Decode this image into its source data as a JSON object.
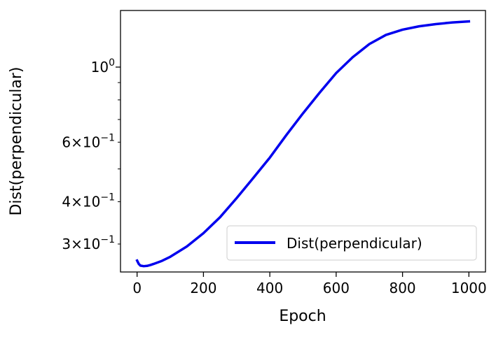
{
  "chart_data": {
    "type": "line",
    "xlabel": "Epoch",
    "ylabel": "Dist(perpendicular)",
    "xlim": [
      -50,
      1050
    ],
    "ylim": [
      0.248,
      1.47
    ],
    "yscale": "log",
    "grid": false,
    "legend_position": "bottom-right",
    "x_ticks": [
      {
        "value": 0,
        "label": "0"
      },
      {
        "value": 200,
        "label": "200"
      },
      {
        "value": 400,
        "label": "400"
      },
      {
        "value": 600,
        "label": "600"
      },
      {
        "value": 800,
        "label": "800"
      },
      {
        "value": 1000,
        "label": "1000"
      }
    ],
    "y_major_ticks": [
      {
        "value": 1.0,
        "mantissa": "",
        "base": "10",
        "exp": "0"
      }
    ],
    "y_minor_ticks": [
      {
        "value": 0.3,
        "mantissa": "3",
        "base": "10",
        "exp": "−1"
      },
      {
        "value": 0.4,
        "mantissa": "4",
        "base": "10",
        "exp": "−1"
      },
      {
        "value": 0.5,
        "mantissa": "",
        "base": "",
        "exp": ""
      },
      {
        "value": 0.6,
        "mantissa": "6",
        "base": "10",
        "exp": "−1"
      },
      {
        "value": 0.7,
        "mantissa": "",
        "base": "",
        "exp": ""
      },
      {
        "value": 0.8,
        "mantissa": "",
        "base": "",
        "exp": ""
      },
      {
        "value": 0.9,
        "mantissa": "",
        "base": "",
        "exp": ""
      }
    ],
    "series": [
      {
        "name": "Dist(perpendicular)",
        "color": "#0000ee",
        "x": [
          0,
          5,
          10,
          20,
          30,
          40,
          50,
          75,
          100,
          150,
          200,
          250,
          300,
          350,
          400,
          450,
          500,
          550,
          600,
          650,
          700,
          750,
          800,
          850,
          900,
          950,
          1000
        ],
        "y": [
          0.268,
          0.262,
          0.259,
          0.258,
          0.2585,
          0.26,
          0.262,
          0.2675,
          0.275,
          0.295,
          0.323,
          0.36,
          0.41,
          0.47,
          0.54,
          0.63,
          0.73,
          0.84,
          0.96,
          1.07,
          1.17,
          1.245,
          1.29,
          1.32,
          1.34,
          1.355,
          1.365
        ]
      }
    ]
  }
}
